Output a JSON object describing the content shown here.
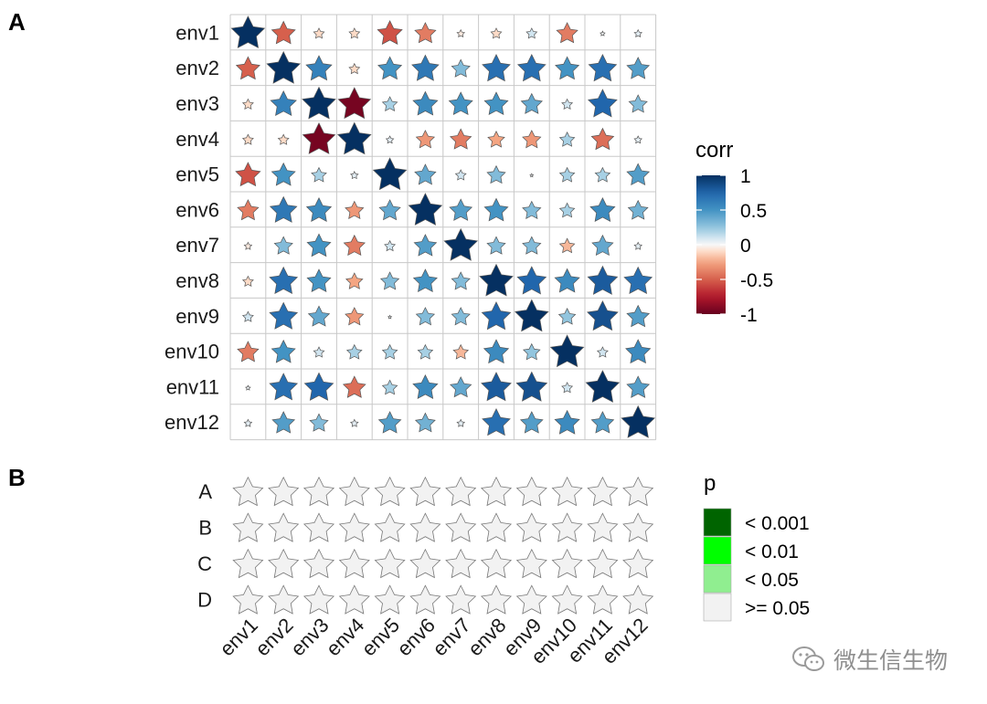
{
  "chart_data": [
    {
      "type": "heatmap",
      "panel": "A",
      "marker": "star",
      "rows": [
        "env1",
        "env2",
        "env3",
        "env4",
        "env5",
        "env6",
        "env7",
        "env8",
        "env9",
        "env10",
        "env11",
        "env12"
      ],
      "cols": [
        "env1",
        "env2",
        "env3",
        "env4",
        "env5",
        "env6",
        "env7",
        "env8",
        "env9",
        "env10",
        "env11",
        "env12"
      ],
      "values": [
        [
          1.0,
          -0.5,
          -0.1,
          -0.1,
          -0.55,
          -0.4,
          -0.05,
          -0.1,
          0.1,
          -0.4,
          0.02,
          0.05
        ],
        [
          -0.5,
          1.0,
          0.6,
          -0.1,
          0.5,
          0.65,
          0.3,
          0.7,
          0.7,
          0.5,
          0.7,
          0.45
        ],
        [
          -0.1,
          0.6,
          1.0,
          -0.95,
          0.2,
          0.55,
          0.5,
          0.5,
          0.4,
          0.1,
          0.75,
          0.3
        ],
        [
          -0.1,
          -0.1,
          -0.95,
          1.0,
          0.05,
          -0.3,
          -0.4,
          -0.25,
          -0.3,
          0.2,
          -0.45,
          0.05
        ],
        [
          -0.55,
          0.5,
          0.2,
          0.05,
          1.0,
          0.4,
          0.1,
          0.3,
          0.01,
          0.2,
          0.2,
          0.45
        ],
        [
          -0.4,
          0.65,
          0.55,
          -0.3,
          0.4,
          1.0,
          0.45,
          0.5,
          0.3,
          0.2,
          0.55,
          0.35
        ],
        [
          -0.05,
          0.3,
          0.5,
          -0.4,
          0.1,
          0.45,
          1.0,
          0.3,
          0.3,
          -0.2,
          0.4,
          0.05
        ],
        [
          -0.1,
          0.7,
          0.5,
          -0.25,
          0.3,
          0.5,
          0.3,
          1.0,
          0.75,
          0.55,
          0.8,
          0.7
        ],
        [
          0.1,
          0.7,
          0.4,
          -0.3,
          0.01,
          0.3,
          0.3,
          0.75,
          1.0,
          0.25,
          0.85,
          0.45
        ],
        [
          -0.4,
          0.5,
          0.1,
          0.2,
          0.2,
          0.2,
          -0.2,
          0.55,
          0.25,
          1.0,
          0.1,
          0.55
        ],
        [
          0.02,
          0.7,
          0.75,
          -0.45,
          0.2,
          0.55,
          0.4,
          0.8,
          0.85,
          0.1,
          1.0,
          0.45
        ],
        [
          0.05,
          0.45,
          0.3,
          0.05,
          0.45,
          0.35,
          0.05,
          0.7,
          0.45,
          0.55,
          0.45,
          1.0
        ]
      ],
      "legend": {
        "title": "corr",
        "range": [
          -1,
          1
        ],
        "ticks": [
          1,
          0.5,
          0,
          -0.5,
          -1
        ],
        "tick_labels": [
          "1",
          "0.5",
          "0",
          "-0.5",
          "-1"
        ]
      }
    },
    {
      "type": "heatmap",
      "panel": "B",
      "marker": "star",
      "rows": [
        "A",
        "B",
        "C",
        "D"
      ],
      "cols": [
        "env1",
        "env2",
        "env3",
        "env4",
        "env5",
        "env6",
        "env7",
        "env8",
        "env9",
        "env10",
        "env11",
        "env12"
      ],
      "p_category": [
        [
          ">= 0.05",
          ">= 0.05",
          ">= 0.05",
          ">= 0.05",
          ">= 0.05",
          ">= 0.05",
          ">= 0.05",
          ">= 0.05",
          ">= 0.05",
          ">= 0.05",
          ">= 0.05",
          ">= 0.05"
        ],
        [
          ">= 0.05",
          ">= 0.05",
          ">= 0.05",
          ">= 0.05",
          ">= 0.05",
          ">= 0.05",
          ">= 0.05",
          ">= 0.05",
          ">= 0.05",
          ">= 0.05",
          ">= 0.05",
          ">= 0.05"
        ],
        [
          ">= 0.05",
          ">= 0.05",
          ">= 0.05",
          ">= 0.05",
          ">= 0.05",
          ">= 0.05",
          ">= 0.05",
          ">= 0.05",
          ">= 0.05",
          ">= 0.05",
          ">= 0.05",
          ">= 0.05"
        ],
        [
          ">= 0.05",
          ">= 0.05",
          ">= 0.05",
          ">= 0.05",
          ">= 0.05",
          ">= 0.05",
          ">= 0.05",
          ">= 0.05",
          ">= 0.05",
          ">= 0.05",
          ">= 0.05",
          ">= 0.05"
        ]
      ],
      "legend": {
        "title": "p",
        "entries": [
          {
            "label": "< 0.001",
            "color": "#006400"
          },
          {
            "label": "< 0.01",
            "color": "#00ff00"
          },
          {
            "label": "< 0.05",
            "color": "#90ee90"
          },
          {
            "label": ">= 0.05",
            "color": "#f2f2f2"
          }
        ]
      }
    }
  ],
  "panel_labels": {
    "a": "A",
    "b": "B"
  },
  "watermark": {
    "text": "微生信生物",
    "icon": "wechat-icon"
  },
  "colors": {
    "neg": "#67001f",
    "mid": "#f7f7f7",
    "pos": "#053061",
    "grid": "#c8c8c8",
    "star_stroke": "#555555"
  }
}
